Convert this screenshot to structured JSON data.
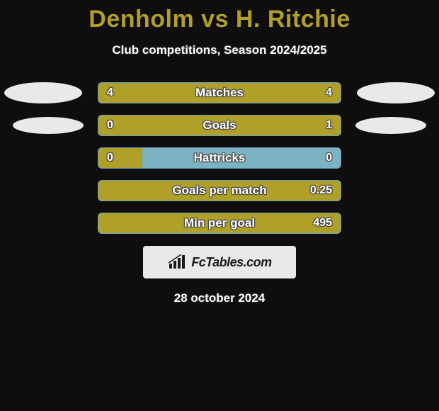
{
  "background_color": "#0f0d0d",
  "title": {
    "text": "Denholm vs H. Ritchie",
    "color": "#b0a02a",
    "fontsize": 34
  },
  "subtitle": {
    "text": "Club competitions, Season 2024/2025",
    "color": "#ffffff",
    "fontsize": 17
  },
  "bar_track_color": "#7cb3c4",
  "bar_track_border": "#6aa3b4",
  "fill_left_color": "#b0a02a",
  "fill_right_color": "#b0a02a",
  "rows": [
    {
      "label": "Matches",
      "left_value": "4",
      "right_value": "4",
      "left_fill_pct": 50,
      "right_fill_pct": 50,
      "left_ellipse_color": "#e9e9e9",
      "right_ellipse_color": "#e9e9e9",
      "show_ellipses": true
    },
    {
      "label": "Goals",
      "left_value": "0",
      "right_value": "1",
      "left_fill_pct": 18,
      "right_fill_pct": 82,
      "left_ellipse_color": "#e9e9e9",
      "right_ellipse_color": "#e9e9e9",
      "show_ellipses": true
    },
    {
      "label": "Hattricks",
      "left_value": "0",
      "right_value": "0",
      "left_fill_pct": 18,
      "right_fill_pct": 0,
      "show_ellipses": false
    },
    {
      "label": "Goals per match",
      "left_value": "",
      "right_value": "0.25",
      "left_fill_pct": 0,
      "right_fill_pct": 100,
      "show_ellipses": false
    },
    {
      "label": "Min per goal",
      "left_value": "",
      "right_value": "495",
      "left_fill_pct": 0,
      "right_fill_pct": 100,
      "show_ellipses": false
    }
  ],
  "footer": {
    "box_bg": "#e9e9e9",
    "brand_text": "FcTables.com",
    "icon_color": "#1a1a1a"
  },
  "date_line": "28 october 2024"
}
